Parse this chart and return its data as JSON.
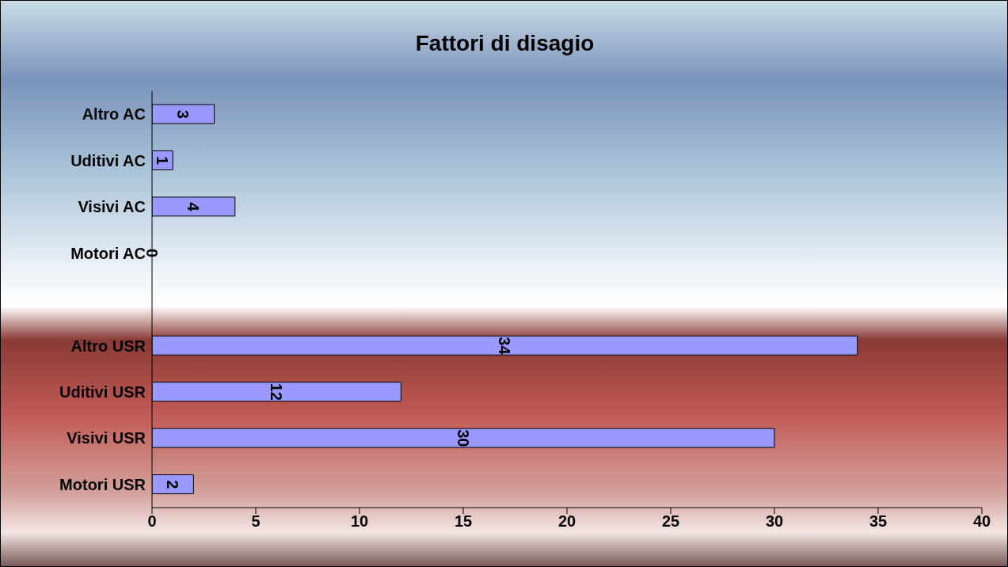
{
  "chart_data": {
    "type": "bar",
    "orientation": "horizontal",
    "title": "Fattori di disagio",
    "categories": [
      "Altro AC",
      "Uditivi AC",
      "Visivi AC",
      "Motori AC",
      null,
      "Altro USR",
      "Uditivi USR",
      "Visivi USR",
      "Motori USR"
    ],
    "values": [
      3,
      1,
      4,
      0,
      null,
      34,
      12,
      30,
      2
    ],
    "color": "#9999ff",
    "xlim": [
      0,
      40
    ],
    "xticks": [
      0,
      5,
      10,
      15,
      20,
      25,
      30,
      35,
      40
    ],
    "data_labels": true,
    "grid": false
  }
}
